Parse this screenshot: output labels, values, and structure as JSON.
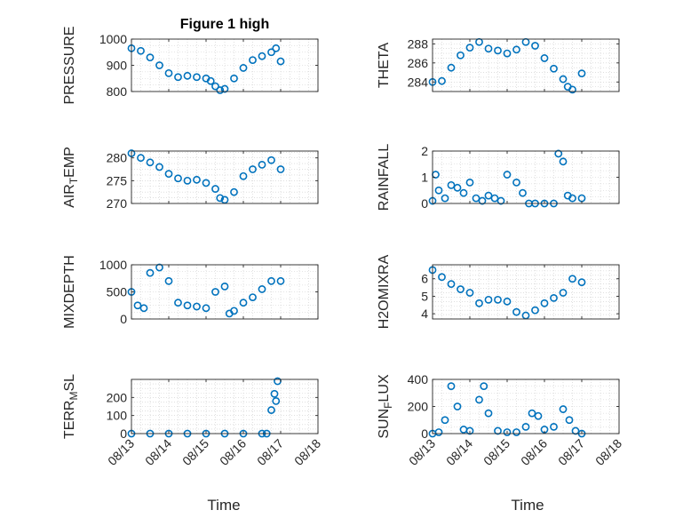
{
  "figure": {
    "xlabel_left": "Time",
    "xlabel_right": "Time",
    "colors": {
      "marker": "#0072BD",
      "axis": "#262626",
      "grid": "#cccccc"
    }
  },
  "chart_data": [
    {
      "type": "scatter",
      "title": "Figure 1 high",
      "ylabel": "PRESSURE",
      "ylim": [
        800,
        1000
      ],
      "yticks": [
        800,
        900,
        1000
      ],
      "x": [
        "08/13 00:00",
        "08/13 06:00",
        "08/13 12:00",
        "08/13 18:00",
        "08/14 00:00",
        "08/14 06:00",
        "08/14 12:00",
        "08/14 18:00",
        "08/15 00:00",
        "08/15 03:00",
        "08/15 06:00",
        "08/15 09:00",
        "08/15 12:00",
        "08/15 18:00",
        "08/16 00:00",
        "08/16 06:00",
        "08/16 12:00",
        "08/16 18:00",
        "08/16 21:00",
        "08/17 00:00"
      ],
      "y": [
        965,
        955,
        930,
        900,
        870,
        855,
        860,
        855,
        850,
        840,
        820,
        805,
        810,
        850,
        890,
        920,
        935,
        950,
        965,
        915
      ]
    },
    {
      "type": "scatter",
      "ylabel": "THETA",
      "ylim": [
        283,
        288.5
      ],
      "yticks": [
        284,
        286,
        288
      ],
      "x": [
        "08/13 00:00",
        "08/13 06:00",
        "08/13 12:00",
        "08/13 18:00",
        "08/14 00:00",
        "08/14 06:00",
        "08/14 12:00",
        "08/14 18:00",
        "08/15 00:00",
        "08/15 06:00",
        "08/15 12:00",
        "08/15 18:00",
        "08/16 00:00",
        "08/16 06:00",
        "08/16 12:00",
        "08/16 15:00",
        "08/16 18:00",
        "08/17 00:00"
      ],
      "y": [
        284,
        284.1,
        285.5,
        286.8,
        287.6,
        288.2,
        287.5,
        287.3,
        287,
        287.4,
        288.2,
        287.8,
        286.5,
        285.4,
        284.3,
        283.5,
        283.2,
        284.9
      ]
    },
    {
      "type": "scatter",
      "ylabel": "AIR_TEMP",
      "ylim": [
        270,
        281.5
      ],
      "yticks": [
        270,
        275,
        280
      ],
      "x": [
        "08/13 00:00",
        "08/13 06:00",
        "08/13 12:00",
        "08/13 18:00",
        "08/14 00:00",
        "08/14 06:00",
        "08/14 12:00",
        "08/14 18:00",
        "08/15 00:00",
        "08/15 06:00",
        "08/15 09:00",
        "08/15 12:00",
        "08/15 18:00",
        "08/16 00:00",
        "08/16 06:00",
        "08/16 12:00",
        "08/16 18:00",
        "08/17 00:00"
      ],
      "y": [
        281,
        280,
        279,
        278,
        276.5,
        275.5,
        275,
        275.2,
        274.5,
        273.2,
        271.2,
        270.8,
        272.5,
        276,
        277.5,
        278.5,
        279.5,
        277.5
      ]
    },
    {
      "type": "scatter",
      "ylabel": "RAINFALL",
      "ylim": [
        0,
        2
      ],
      "yticks": [
        0,
        1,
        2
      ],
      "x": [
        "08/13 00:00",
        "08/13 02:00",
        "08/13 04:00",
        "08/13 08:00",
        "08/13 12:00",
        "08/13 16:00",
        "08/13 20:00",
        "08/14 00:00",
        "08/14 04:00",
        "08/14 08:00",
        "08/14 12:00",
        "08/14 16:00",
        "08/14 20:00",
        "08/15 00:00",
        "08/15 06:00",
        "08/15 10:00",
        "08/15 14:00",
        "08/15 18:00",
        "08/16 00:00",
        "08/16 06:00",
        "08/16 09:00",
        "08/16 12:00",
        "08/16 15:00",
        "08/16 18:00",
        "08/17 00:00"
      ],
      "y": [
        0.1,
        1.1,
        0.5,
        0.2,
        0.7,
        0.6,
        0.4,
        0.8,
        0.2,
        0.1,
        0.3,
        0.2,
        0.1,
        1.1,
        0.8,
        0.4,
        0,
        0,
        0,
        0,
        1.9,
        1.6,
        0.3,
        0.2,
        0.2
      ]
    },
    {
      "type": "scatter",
      "ylabel": "MIXDEPTH",
      "ylim": [
        0,
        1000
      ],
      "yticks": [
        0,
        500,
        1000
      ],
      "x": [
        "08/13 00:00",
        "08/13 04:00",
        "08/13 08:00",
        "08/13 12:00",
        "08/13 18:00",
        "08/14 00:00",
        "08/14 06:00",
        "08/14 12:00",
        "08/14 18:00",
        "08/15 00:00",
        "08/15 06:00",
        "08/15 12:00",
        "08/15 15:00",
        "08/15 18:00",
        "08/16 00:00",
        "08/16 06:00",
        "08/16 12:00",
        "08/16 18:00",
        "08/17 00:00"
      ],
      "y": [
        500,
        250,
        200,
        850,
        950,
        700,
        300,
        250,
        230,
        200,
        500,
        600,
        100,
        150,
        300,
        400,
        550,
        700,
        700
      ]
    },
    {
      "type": "scatter",
      "ylabel": "H2OMIXRA",
      "ylim": [
        3.7,
        6.8
      ],
      "yticks": [
        4,
        5,
        6
      ],
      "x": [
        "08/13 00:00",
        "08/13 06:00",
        "08/13 12:00",
        "08/13 18:00",
        "08/14 00:00",
        "08/14 06:00",
        "08/14 12:00",
        "08/14 18:00",
        "08/15 00:00",
        "08/15 06:00",
        "08/15 12:00",
        "08/15 18:00",
        "08/16 00:00",
        "08/16 06:00",
        "08/16 12:00",
        "08/16 18:00",
        "08/17 00:00"
      ],
      "y": [
        6.5,
        6.1,
        5.7,
        5.4,
        5.2,
        4.6,
        4.8,
        4.8,
        4.7,
        4.1,
        3.9,
        4.2,
        4.6,
        4.9,
        5.2,
        6,
        5.8
      ]
    },
    {
      "type": "scatter",
      "ylabel": "TERR_MSL",
      "ylim": [
        0,
        300
      ],
      "yticks": [
        0,
        100,
        200
      ],
      "x": [
        "08/13 00:00",
        "08/13 12:00",
        "08/14 00:00",
        "08/14 12:00",
        "08/15 00:00",
        "08/15 12:00",
        "08/16 00:00",
        "08/16 12:00",
        "08/16 15:00",
        "08/16 18:00",
        "08/16 20:00",
        "08/16 21:00",
        "08/16 22:00"
      ],
      "y": [
        0,
        0,
        0,
        0,
        0,
        0,
        0,
        0,
        0,
        130,
        220,
        180,
        290
      ]
    },
    {
      "type": "scatter",
      "ylabel": "SUN_FLUX",
      "ylim": [
        0,
        400
      ],
      "yticks": [
        0,
        200,
        400
      ],
      "x": [
        "08/13 00:00",
        "08/13 04:00",
        "08/13 08:00",
        "08/13 12:00",
        "08/13 16:00",
        "08/13 20:00",
        "08/14 00:00",
        "08/14 06:00",
        "08/14 09:00",
        "08/14 12:00",
        "08/14 18:00",
        "08/15 00:00",
        "08/15 06:00",
        "08/15 12:00",
        "08/15 16:00",
        "08/15 20:00",
        "08/16 00:00",
        "08/16 06:00",
        "08/16 12:00",
        "08/16 16:00",
        "08/16 20:00",
        "08/17 00:00"
      ],
      "y": [
        0,
        10,
        100,
        350,
        200,
        30,
        20,
        250,
        350,
        150,
        20,
        10,
        10,
        50,
        150,
        130,
        30,
        50,
        180,
        100,
        20,
        0
      ]
    }
  ],
  "xaxis": {
    "range": [
      "08/13 00:00",
      "08/18 00:00"
    ],
    "ticks": [
      "08/13",
      "08/14",
      "08/15",
      "08/16",
      "08/17",
      "08/18"
    ]
  }
}
